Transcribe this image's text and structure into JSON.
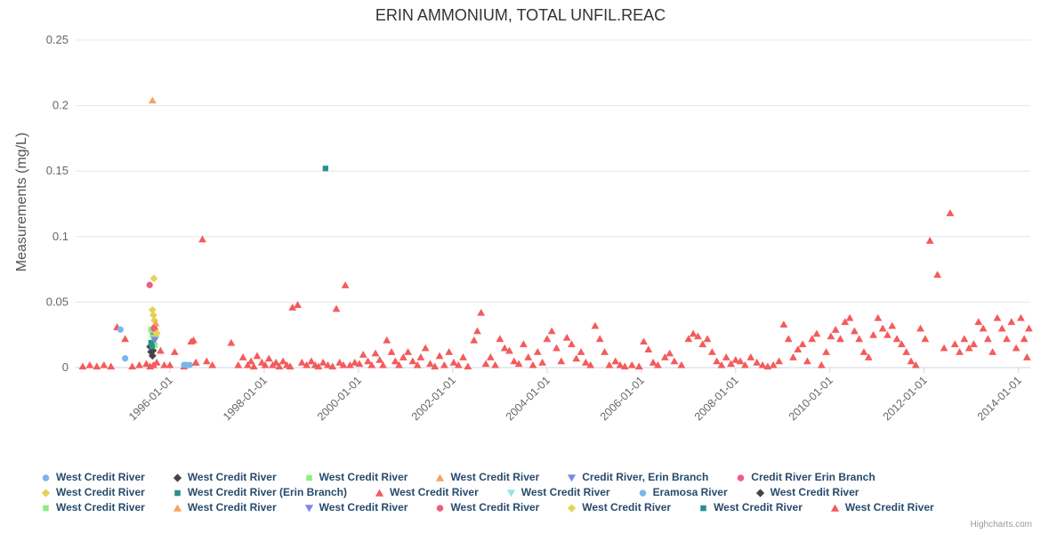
{
  "credits": "Highcharts.com",
  "chart_data": {
    "type": "scatter",
    "title": "ERIN AMMONIUM, TOTAL UNFIL.REAC",
    "xlabel": "",
    "ylabel": "Measurements (mg/L)",
    "xlim": [
      1994.0,
      2014.25
    ],
    "ylim": [
      0,
      0.25
    ],
    "x_unit": "decimal_year",
    "grid": "horizontal",
    "legend_position": "bottom",
    "legend_rows": [
      6,
      6,
      7
    ],
    "y_ticks": [
      0,
      0.05,
      0.1,
      0.15,
      0.2,
      0.25
    ],
    "y_tick_labels": [
      "0",
      "0.05",
      "0.1",
      "0.15",
      "0.2",
      "0.25"
    ],
    "x_ticks": [
      1996,
      1998,
      2000,
      2002,
      2004,
      2006,
      2008,
      2010,
      2012,
      2014
    ],
    "x_tick_labels": [
      "1996-01-01",
      "1998-01-01",
      "2000-01-01",
      "2002-01-01",
      "2004-01-01",
      "2006-01-01",
      "2008-01-01",
      "2010-01-01",
      "2012-01-01",
      "2014-01-01"
    ],
    "series": [
      {
        "name": "West Credit River",
        "marker": "circle",
        "color": "#7cb5ec",
        "points": [
          [
            1994.95,
            0.029
          ],
          [
            1995.05,
            0.007
          ],
          [
            1996.3,
            0.002
          ],
          [
            1996.42,
            0.002
          ]
        ]
      },
      {
        "name": "West Credit River",
        "marker": "diamond",
        "color": "#434348",
        "points": [
          [
            1995.58,
            0.016
          ],
          [
            1995.6,
            0.012
          ],
          [
            1995.63,
            0.009
          ]
        ]
      },
      {
        "name": "West Credit River",
        "marker": "square",
        "color": "#90ed7d",
        "points": [
          [
            1995.6,
            0.029
          ],
          [
            1995.63,
            0.025
          ],
          [
            1995.65,
            0.021
          ],
          [
            1995.68,
            0.017
          ]
        ]
      },
      {
        "name": "West Credit River",
        "marker": "triangle",
        "color": "#f7a35c",
        "points": [
          [
            1995.63,
            0.204
          ],
          [
            1995.68,
            0.031
          ]
        ]
      },
      {
        "name": "Credit River, Erin Branch",
        "marker": "triangle-down",
        "color": "#8085e9",
        "points": [
          [
            1995.66,
            0.024
          ]
        ]
      },
      {
        "name": "Credit River Erin Branch",
        "marker": "circle",
        "color": "#f15c80",
        "points": [
          [
            1995.57,
            0.063
          ],
          [
            1995.68,
            0.029
          ]
        ]
      },
      {
        "name": "West Credit River",
        "marker": "diamond",
        "color": "#e4d354",
        "points": [
          [
            1995.66,
            0.068
          ],
          [
            1995.63,
            0.044
          ],
          [
            1995.65,
            0.04
          ],
          [
            1995.67,
            0.036
          ],
          [
            1995.69,
            0.032
          ],
          [
            1995.71,
            0.027
          ]
        ]
      },
      {
        "name": "West Credit River (Erin Branch)",
        "marker": "square",
        "color": "#2b908f",
        "points": [
          [
            1995.6,
            0.019
          ],
          [
            1999.3,
            0.152
          ]
        ]
      },
      {
        "name": "West Credit River",
        "marker": "triangle",
        "color": "#f45b5b",
        "points": [
          [
            1994.15,
            0.001
          ],
          [
            1994.3,
            0.002
          ],
          [
            1994.45,
            0.001
          ],
          [
            1994.6,
            0.002
          ],
          [
            1994.75,
            0.001
          ],
          [
            1994.88,
            0.031
          ],
          [
            1995.05,
            0.022
          ],
          [
            1995.2,
            0.001
          ],
          [
            1995.35,
            0.002
          ],
          [
            1995.5,
            0.003
          ],
          [
            1995.58,
            0.001
          ],
          [
            1995.65,
            0.002
          ],
          [
            1995.72,
            0.004
          ],
          [
            1995.8,
            0.013
          ],
          [
            1995.88,
            0.002
          ],
          [
            1996.0,
            0.002
          ],
          [
            1996.1,
            0.012
          ],
          [
            1996.3,
            0.001
          ],
          [
            1996.45,
            0.02
          ],
          [
            1996.55,
            0.004
          ],
          [
            1996.69,
            0.098
          ],
          [
            1996.78,
            0.005
          ],
          [
            1996.9,
            0.002
          ],
          [
            1997.3,
            0.019
          ],
          [
            1997.45,
            0.002
          ],
          [
            1997.55,
            0.008
          ],
          [
            1997.65,
            0.002
          ],
          [
            1997.72,
            0.005
          ],
          [
            1997.78,
            0.001
          ],
          [
            1997.85,
            0.009
          ],
          [
            1997.95,
            0.004
          ],
          [
            1998.02,
            0.002
          ],
          [
            1998.1,
            0.007
          ],
          [
            1998.18,
            0.002
          ],
          [
            1998.25,
            0.004
          ],
          [
            1998.32,
            0.001
          ],
          [
            1998.4,
            0.005
          ],
          [
            1998.48,
            0.002
          ],
          [
            1998.55,
            0.001
          ],
          [
            1998.6,
            0.046
          ],
          [
            1998.71,
            0.048
          ],
          [
            1998.8,
            0.004
          ],
          [
            1998.9,
            0.002
          ],
          [
            1999.0,
            0.005
          ],
          [
            1999.08,
            0.002
          ],
          [
            1999.15,
            0.001
          ],
          [
            1999.25,
            0.004
          ],
          [
            1999.35,
            0.002
          ],
          [
            1999.45,
            0.001
          ],
          [
            1999.53,
            0.045
          ],
          [
            1999.6,
            0.004
          ],
          [
            1999.68,
            0.002
          ],
          [
            1999.72,
            0.063
          ],
          [
            1999.82,
            0.002
          ],
          [
            1999.92,
            0.004
          ],
          [
            2000.02,
            0.003
          ],
          [
            2000.1,
            0.01
          ],
          [
            2000.2,
            0.005
          ],
          [
            2000.28,
            0.002
          ],
          [
            2000.36,
            0.011
          ],
          [
            2000.45,
            0.006
          ],
          [
            2000.52,
            0.002
          ],
          [
            2000.6,
            0.021
          ],
          [
            2000.7,
            0.012
          ],
          [
            2000.78,
            0.005
          ],
          [
            2000.86,
            0.002
          ],
          [
            2000.95,
            0.008
          ],
          [
            2001.05,
            0.012
          ],
          [
            2001.15,
            0.005
          ],
          [
            2001.25,
            0.002
          ],
          [
            2001.32,
            0.008
          ],
          [
            2001.42,
            0.015
          ],
          [
            2001.52,
            0.003
          ],
          [
            2001.62,
            0.001
          ],
          [
            2001.72,
            0.009
          ],
          [
            2001.82,
            0.002
          ],
          [
            2001.92,
            0.012
          ],
          [
            2002.02,
            0.004
          ],
          [
            2002.12,
            0.002
          ],
          [
            2002.22,
            0.008
          ],
          [
            2002.32,
            0.001
          ],
          [
            2002.45,
            0.021
          ],
          [
            2002.52,
            0.028
          ],
          [
            2002.6,
            0.042
          ],
          [
            2002.7,
            0.003
          ],
          [
            2002.8,
            0.008
          ],
          [
            2002.9,
            0.002
          ],
          [
            2003.0,
            0.022
          ],
          [
            2003.1,
            0.015
          ],
          [
            2003.2,
            0.013
          ],
          [
            2003.3,
            0.005
          ],
          [
            2003.4,
            0.003
          ],
          [
            2003.5,
            0.018
          ],
          [
            2003.6,
            0.008
          ],
          [
            2003.7,
            0.002
          ],
          [
            2003.8,
            0.012
          ],
          [
            2003.9,
            0.004
          ],
          [
            2004.0,
            0.022
          ],
          [
            2004.1,
            0.028
          ],
          [
            2004.2,
            0.015
          ],
          [
            2004.3,
            0.005
          ],
          [
            2004.42,
            0.023
          ],
          [
            2004.52,
            0.018
          ],
          [
            2004.62,
            0.007
          ],
          [
            2004.72,
            0.012
          ],
          [
            2004.82,
            0.004
          ],
          [
            2004.92,
            0.002
          ],
          [
            2005.02,
            0.032
          ],
          [
            2005.12,
            0.022
          ],
          [
            2005.22,
            0.012
          ],
          [
            2005.32,
            0.002
          ],
          [
            2005.45,
            0.005
          ],
          [
            2005.55,
            0.002
          ],
          [
            2005.65,
            0.001
          ],
          [
            2005.8,
            0.002
          ],
          [
            2005.95,
            0.001
          ],
          [
            2006.05,
            0.02
          ],
          [
            2006.15,
            0.014
          ],
          [
            2006.25,
            0.004
          ],
          [
            2006.35,
            0.002
          ],
          [
            2006.5,
            0.008
          ],
          [
            2006.6,
            0.011
          ],
          [
            2006.7,
            0.005
          ],
          [
            2006.85,
            0.002
          ],
          [
            2007.0,
            0.022
          ],
          [
            2007.1,
            0.026
          ],
          [
            2007.2,
            0.024
          ],
          [
            2007.3,
            0.018
          ],
          [
            2007.4,
            0.022
          ],
          [
            2007.5,
            0.012
          ],
          [
            2007.6,
            0.005
          ],
          [
            2007.7,
            0.002
          ],
          [
            2007.8,
            0.008
          ],
          [
            2007.9,
            0.003
          ],
          [
            2008.0,
            0.006
          ],
          [
            2008.1,
            0.005
          ],
          [
            2008.2,
            0.002
          ],
          [
            2008.32,
            0.008
          ],
          [
            2008.45,
            0.004
          ],
          [
            2008.57,
            0.002
          ],
          [
            2008.68,
            0.001
          ],
          [
            2008.8,
            0.002
          ],
          [
            2008.92,
            0.005
          ],
          [
            2009.02,
            0.033
          ],
          [
            2009.12,
            0.022
          ],
          [
            2009.22,
            0.008
          ],
          [
            2009.32,
            0.014
          ],
          [
            2009.42,
            0.018
          ],
          [
            2009.52,
            0.005
          ],
          [
            2009.62,
            0.022
          ],
          [
            2009.72,
            0.026
          ],
          [
            2009.82,
            0.002
          ],
          [
            2009.92,
            0.012
          ],
          [
            2010.02,
            0.024
          ],
          [
            2010.12,
            0.029
          ],
          [
            2010.22,
            0.022
          ],
          [
            2010.32,
            0.035
          ],
          [
            2010.42,
            0.038
          ],
          [
            2010.52,
            0.028
          ],
          [
            2010.62,
            0.022
          ],
          [
            2010.72,
            0.012
          ],
          [
            2010.82,
            0.008
          ],
          [
            2010.92,
            0.025
          ],
          [
            2011.02,
            0.038
          ],
          [
            2011.12,
            0.03
          ],
          [
            2011.22,
            0.025
          ],
          [
            2011.32,
            0.032
          ],
          [
            2011.42,
            0.022
          ],
          [
            2011.52,
            0.018
          ],
          [
            2011.62,
            0.012
          ],
          [
            2011.72,
            0.005
          ],
          [
            2011.82,
            0.002
          ],
          [
            2011.92,
            0.03
          ],
          [
            2012.02,
            0.022
          ],
          [
            2012.12,
            0.097
          ],
          [
            2012.28,
            0.071
          ],
          [
            2012.42,
            0.015
          ],
          [
            2012.55,
            0.118
          ],
          [
            2012.65,
            0.018
          ],
          [
            2012.75,
            0.012
          ],
          [
            2012.85,
            0.022
          ],
          [
            2012.95,
            0.015
          ],
          [
            2013.05,
            0.018
          ],
          [
            2013.15,
            0.035
          ],
          [
            2013.25,
            0.03
          ],
          [
            2013.35,
            0.022
          ],
          [
            2013.45,
            0.012
          ],
          [
            2013.55,
            0.038
          ],
          [
            2013.65,
            0.03
          ],
          [
            2013.75,
            0.022
          ],
          [
            2013.85,
            0.035
          ],
          [
            2013.95,
            0.015
          ],
          [
            2014.05,
            0.038
          ],
          [
            2014.12,
            0.022
          ],
          [
            2014.18,
            0.008
          ],
          [
            2014.22,
            0.03
          ]
        ]
      },
      {
        "name": "West Credit River",
        "marker": "triangle-down",
        "color": "#91e8e1",
        "points": [
          [
            1995.7,
            0.022
          ]
        ]
      },
      {
        "name": "Eramosa River",
        "marker": "circle",
        "color": "#7cb5ec",
        "points": [
          [
            1996.35,
            0.002
          ]
        ]
      },
      {
        "name": "West Credit River",
        "marker": "diamond",
        "color": "#434348",
        "points": [
          [
            1995.64,
            0.013
          ]
        ]
      },
      {
        "name": "West Credit River",
        "marker": "square",
        "color": "#90ed7d",
        "points": [
          [
            1995.66,
            0.023
          ]
        ]
      },
      {
        "name": "West Credit River",
        "marker": "triangle",
        "color": "#f7a35c",
        "points": [
          [
            1995.7,
            0.034
          ]
        ]
      },
      {
        "name": "West Credit River",
        "marker": "triangle-down",
        "color": "#8085e9",
        "points": [
          [
            1995.68,
            0.021
          ]
        ]
      },
      {
        "name": "West Credit River",
        "marker": "circle",
        "color": "#f15c80",
        "points": [
          [
            1995.66,
            0.03
          ]
        ]
      },
      {
        "name": "West Credit River",
        "marker": "diamond",
        "color": "#e4d354",
        "points": [
          [
            1995.72,
            0.026
          ]
        ]
      },
      {
        "name": "West Credit River",
        "marker": "square",
        "color": "#2b908f",
        "points": [
          [
            1995.62,
            0.016
          ]
        ]
      },
      {
        "name": "West Credit River",
        "marker": "triangle",
        "color": "#f45b5b",
        "points": [
          [
            1996.5,
            0.021
          ],
          [
            1996.55,
            0.004
          ]
        ]
      }
    ],
    "colors": {
      "grid": "#e6e6e6",
      "axis_line": "#ccd6eb",
      "tick_label": "#666666",
      "legend_text": "#274b6d",
      "title_text": "#333333"
    }
  }
}
